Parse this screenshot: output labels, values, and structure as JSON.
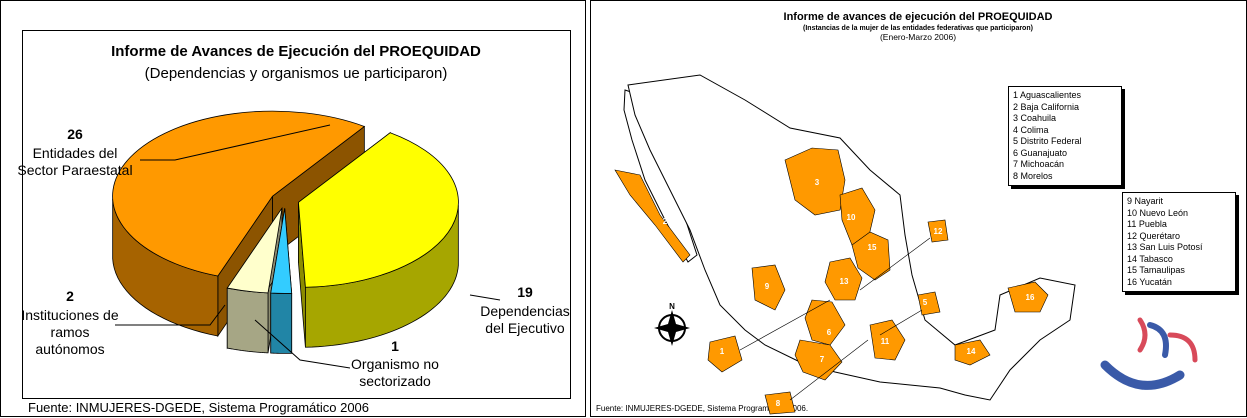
{
  "chart_data": {
    "type": "pie3d",
    "title": "Informe de Avances de Ejecución del PROEQUIDAD",
    "subtitle": "(Dependencias y organismos ue participaron)",
    "categories": [
      "Dependencias del Ejecutivo",
      "Organismo no sectorizado",
      "Instituciones de ramos autónomos",
      "Entidades del Sector Paraestatal"
    ],
    "values": [
      19,
      1,
      2,
      26
    ],
    "colors": [
      "#ffff00",
      "#33ccff",
      "#ffffcc",
      "#ff9900"
    ],
    "source": "Fuente: INMUJERES-DGEDE, Sistema Programático 2006"
  },
  "map": {
    "title": "Informe de avances de ejecución del PROEQUIDAD",
    "subtitle": "(Instancias de la mujer de las entidades federativas que participaron)",
    "period": "(Enero-Marzo 2006)",
    "legend_1": [
      "1 Aguascalientes",
      "2 Baja California",
      "3 Coahuila",
      "4 Colima",
      "5 Distrito Federal",
      "6 Guanajuato",
      "7 Michoacán",
      "8 Morelos"
    ],
    "legend_2": [
      "9 Nayarit",
      "10 Nuevo León",
      "11 Puebla",
      "12 Querétaro",
      "13 San Luis Potosí",
      "14 Tabasco",
      "15 Tamaulipas",
      "16 Yucatán"
    ],
    "markers": [
      "1",
      "2",
      "3",
      "5",
      "6",
      "7",
      "8",
      "9",
      "10",
      "11",
      "12",
      "13",
      "14",
      "15",
      "16"
    ],
    "compass": "N",
    "source": "Fuente: INMUJERES-DGEDE, Sistema Programático 2006."
  }
}
